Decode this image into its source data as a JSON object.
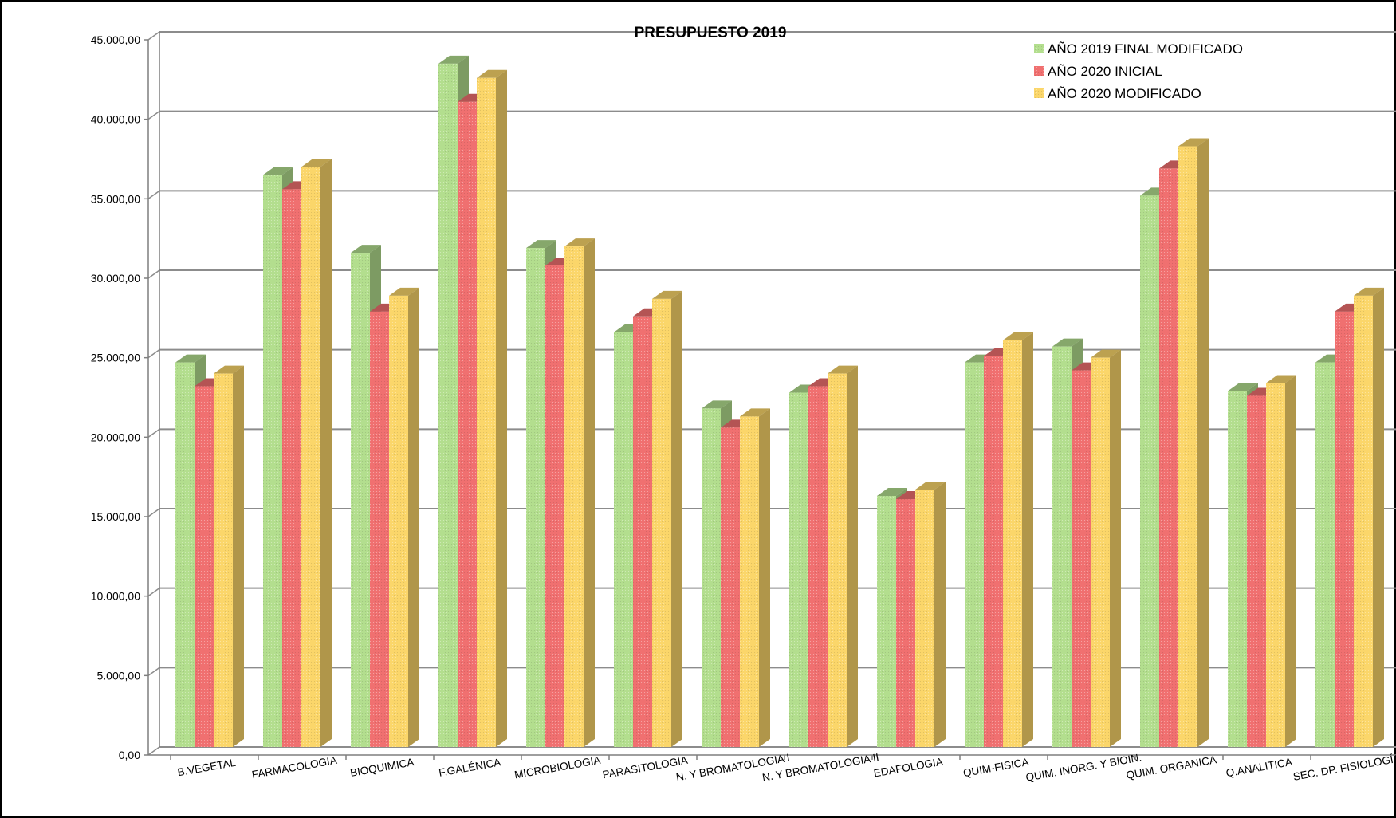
{
  "chart_data": {
    "type": "bar",
    "title": "PRESUPUESTO 2019",
    "xlabel": "",
    "ylabel": "",
    "ylim": [
      0,
      45000
    ],
    "yticks": [
      "0,00",
      "5.000,00",
      "10.000,00",
      "15.000,00",
      "20.000,00",
      "25.000,00",
      "30.000,00",
      "35.000,00",
      "40.000,00",
      "45.000,00"
    ],
    "grid": true,
    "legend_position": "top-right",
    "categories": [
      "B.VEGETAL",
      "FARMACOLOGIA",
      "BIOQUIMICA",
      "F.GALÉNICA",
      "MICROBIOLOGIA",
      "PARASITOLOGIA",
      "N. Y BROMATOLOGIA I",
      "N. Y BROMATOLOGIA II",
      "EDAFOLOGIA",
      "QUIM-FISICA",
      "QUIM. INORG. Y BIOIN.",
      "QUIM. ORGANICA",
      "Q.ANALITICA",
      "SEC. DP. FISIOLOGÍA"
    ],
    "series": [
      {
        "name": "AÑO 2019 FINAL MODIFICADO",
        "color": "#b3de8e",
        "values": [
          24200,
          36000,
          31100,
          43000,
          31400,
          26100,
          21300,
          22300,
          15800,
          24200,
          25200,
          34700,
          22400,
          24200
        ]
      },
      {
        "name": "AÑO 2020 INICIAL",
        "color": "#f07070",
        "values": [
          22700,
          35100,
          27400,
          40600,
          30300,
          27100,
          20100,
          22700,
          15600,
          24600,
          23700,
          36400,
          22100,
          27400
        ]
      },
      {
        "name": "AÑO 2020 MODIFICADO",
        "color": "#fbd66a",
        "values": [
          23500,
          36500,
          28400,
          42100,
          31500,
          28200,
          20800,
          23500,
          16200,
          25600,
          24500,
          37800,
          22900,
          28400
        ]
      }
    ]
  }
}
